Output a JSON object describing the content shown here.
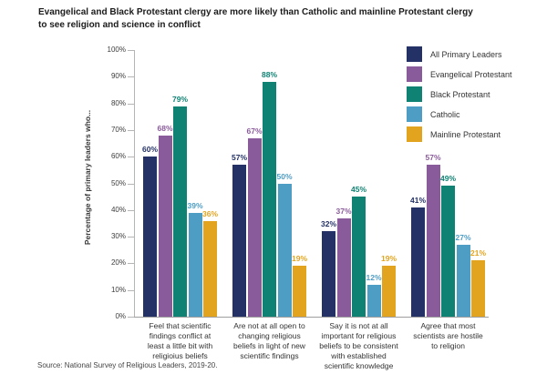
{
  "title": "Evangelical and Black Protestant clergy are more likely than Catholic and mainline Protestant clergy\nto see religion and science in conflict",
  "source": "Source: National Survey of Religious Leaders, 2019-20.",
  "chart_data": {
    "type": "bar",
    "title": "Evangelical and Black Protestant clergy are more likely than Catholic and mainline Protestant clergy to see religion and science in conflict",
    "ylabel": "Percentage of primary leaders who...",
    "xlabel": "",
    "ylim": [
      0,
      100
    ],
    "ytick_step": 10,
    "ytick_suffix": "%",
    "grid": false,
    "legend_position": "top-right",
    "value_suffix": "%",
    "categories": [
      "Feel that scientific\nfindings conflict at\nleast a little bit with\nreligioius beliefs",
      "Are not at all open to\nchanging religious\nbeliefs in light of new\nscientific findings",
      "Say it is not at all\nimportant for religious\nbeliefs to be consistent\nwith established\nscientific knowledge",
      "Agree that most\nscientists are hostile\nto religion"
    ],
    "series": [
      {
        "name": "All Primary Leaders",
        "color": "#233166",
        "values": [
          60,
          57,
          32,
          41
        ]
      },
      {
        "name": "Evangelical Protestant",
        "color": "#8a5b9b",
        "values": [
          68,
          67,
          37,
          57
        ]
      },
      {
        "name": "Black Protestant",
        "color": "#0f8273",
        "values": [
          79,
          88,
          45,
          49
        ]
      },
      {
        "name": "Catholic",
        "color": "#4e9dc4",
        "values": [
          39,
          50,
          12,
          27
        ]
      },
      {
        "name": "Mainline Protestant",
        "color": "#e2a41f",
        "values": [
          36,
          19,
          19,
          21
        ]
      }
    ]
  }
}
